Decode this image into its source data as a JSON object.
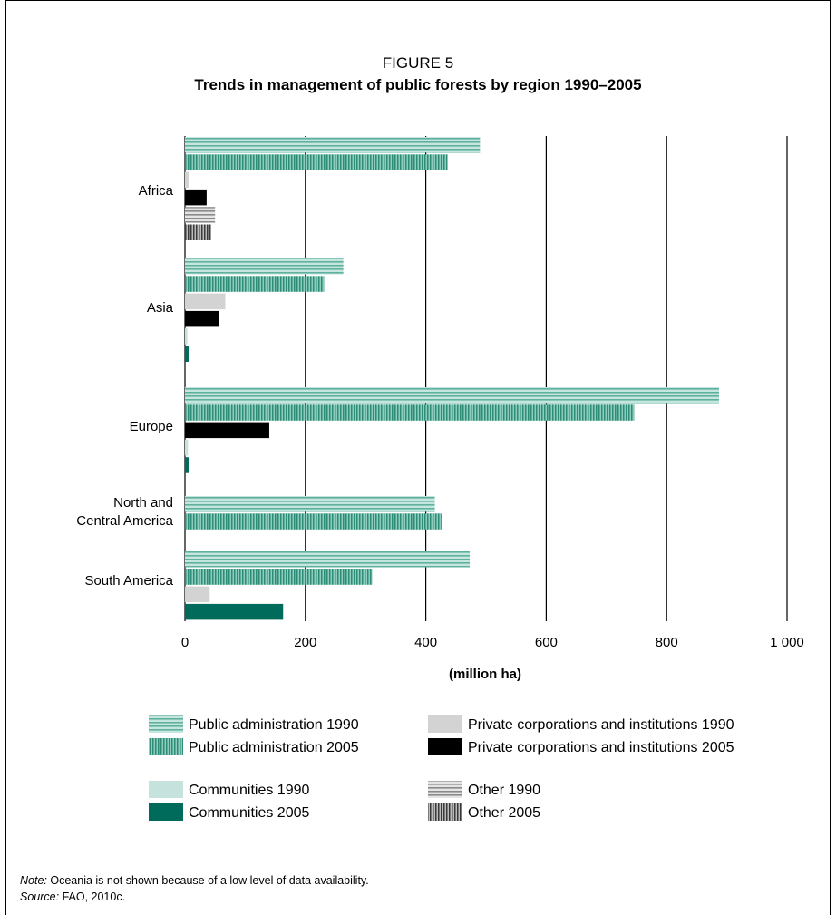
{
  "figure": {
    "label": "FIGURE 5",
    "title": "Trends in management of public forests by region 1990–2005"
  },
  "chart_data": {
    "type": "bar",
    "orientation": "horizontal",
    "categories": [
      "Africa",
      "Asia",
      "Europe",
      "North and Central America",
      "South America"
    ],
    "category_lines": [
      [
        "Africa"
      ],
      [
        "Asia"
      ],
      [
        "Europe"
      ],
      [
        "North and",
        "Central America"
      ],
      [
        "South America"
      ]
    ],
    "xlabel": "(million ha)",
    "xlim": [
      0,
      1000
    ],
    "xticks": [
      0,
      200,
      400,
      600,
      800,
      1000
    ],
    "xtick_labels": [
      "0",
      "200",
      "400",
      "600",
      "800",
      "1 000"
    ],
    "grid": true,
    "legend_position": "bottom",
    "series": [
      {
        "name": "Public administration 1990",
        "pattern": "hstripe",
        "color": "#7fc4b4",
        "values": [
          490,
          263,
          887,
          415,
          473
        ]
      },
      {
        "name": "Public administration 2005",
        "pattern": "vstripe",
        "color": "#3e9a86",
        "values": [
          436,
          231,
          746,
          426,
          311
        ]
      },
      {
        "name": "Private corporations and institutions 1990",
        "pattern": "solid",
        "color": "#d3d3d3",
        "values": [
          6,
          67,
          0,
          0,
          41
        ]
      },
      {
        "name": "Private corporations and institutions 2005",
        "pattern": "solid",
        "color": "#000000",
        "values": [
          36,
          57,
          140,
          0,
          0
        ]
      },
      {
        "name": "Communities 1990",
        "pattern": "solid",
        "color": "#c6e2dd",
        "values": [
          0,
          4,
          5,
          0,
          0
        ]
      },
      {
        "name": "Communities 2005",
        "pattern": "solid",
        "color": "#006b5a",
        "values": [
          0,
          6,
          6,
          0,
          163
        ]
      },
      {
        "name": "Other 1990",
        "pattern": "hstripe-gray",
        "color": "#9a9a9a",
        "values": [
          50,
          0,
          0,
          0,
          0
        ]
      },
      {
        "name": "Other 2005",
        "pattern": "vstripe-gray",
        "color": "#555555",
        "values": [
          43,
          0,
          0,
          0,
          0
        ]
      }
    ]
  },
  "notes": {
    "note_label": "Note:",
    "note_text": " Oceania is not shown because of a low level of data availability.",
    "source_label": "Source:",
    "source_text": " FAO, 2010c."
  }
}
